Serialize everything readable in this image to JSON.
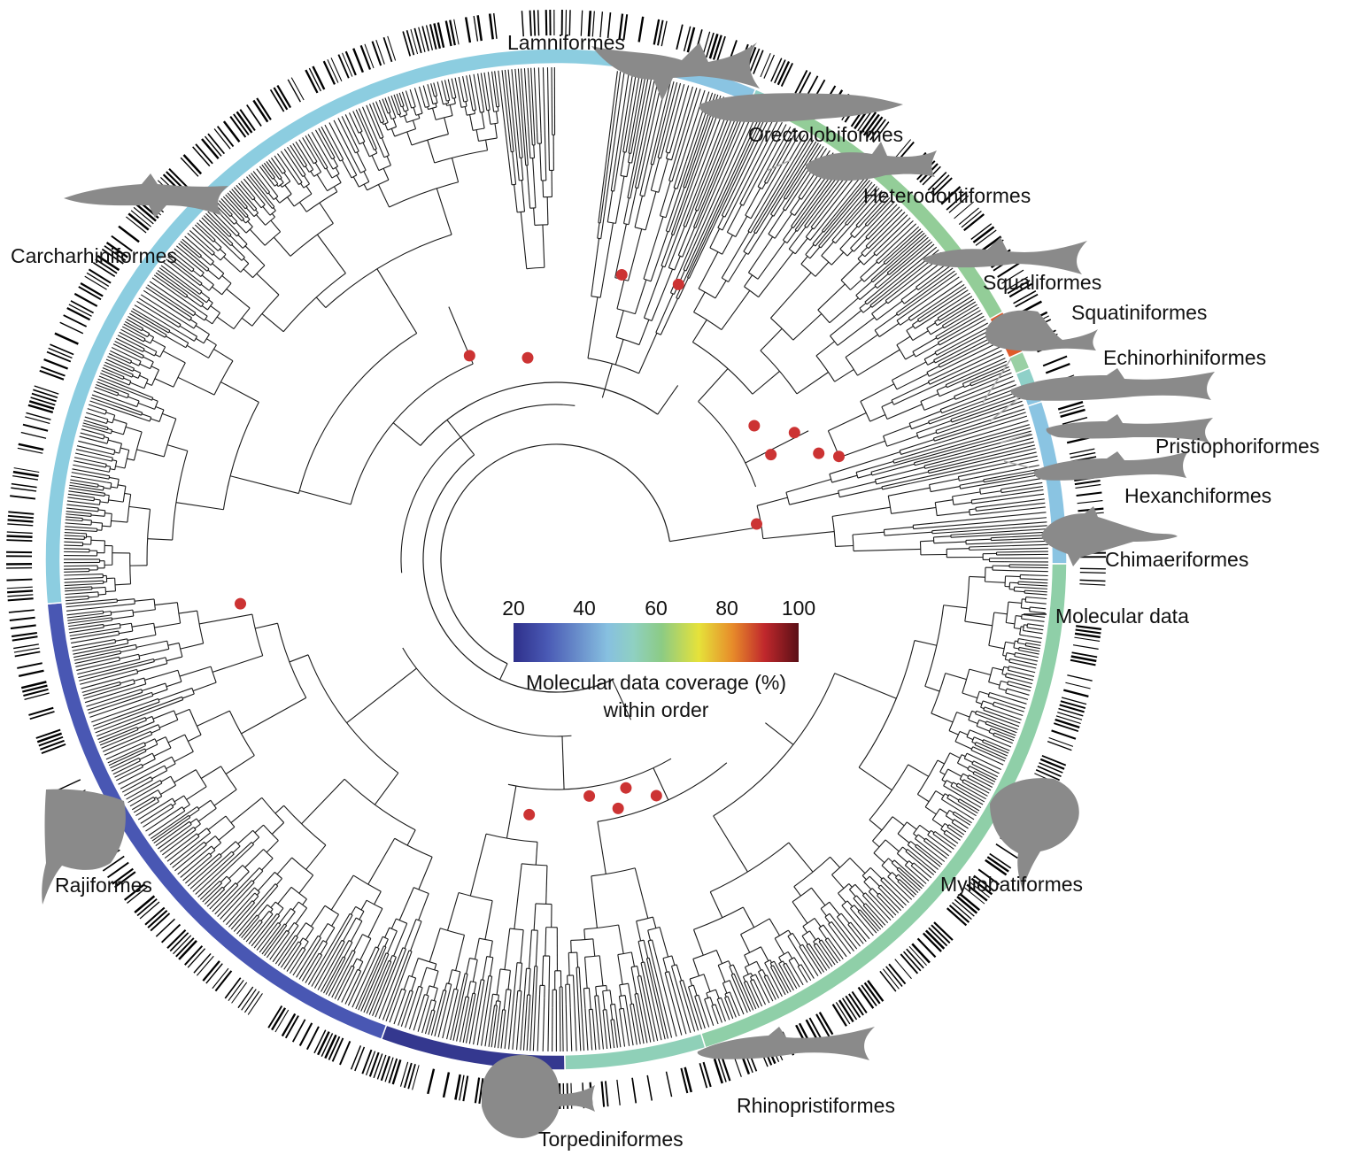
{
  "legend": {
    "ticks": [
      "20",
      "40",
      "60",
      "80",
      "100"
    ],
    "title_line1": "Molecular data coverage (%)",
    "title_line2": "within order",
    "gradient": [
      "#2e2f8a",
      "#4a5ab5",
      "#87c0e0",
      "#8fd0c2",
      "#8ccb84",
      "#e6e23a",
      "#e78a2a",
      "#c0282c",
      "#5a0f16"
    ]
  },
  "molecular_data_label": "Molecular data",
  "node_color": "#cc3333",
  "silhouette_color": "#8a8a8a",
  "orders": [
    {
      "name": "Lamniformes",
      "color": "#c8242a"
    },
    {
      "name": "Orectolobiformes",
      "color": "#8ac4e2"
    },
    {
      "name": "Heterodontiformes",
      "color": "#8fd0c6"
    },
    {
      "name": "Squaliformes",
      "color": "#93cd98"
    },
    {
      "name": "Squatiniformes",
      "color": "#e05a2a"
    },
    {
      "name": "Echinorhiniformes",
      "color": "#9ad0a4"
    },
    {
      "name": "Pristiophoriformes",
      "color": "#8fd0c8"
    },
    {
      "name": "Hexanchiformes",
      "color": "#8ac4e2"
    },
    {
      "name": "Chimaeriformes",
      "color": "#8ac4e2"
    },
    {
      "name": "Myliobatiformes",
      "color": "#8fcfa8"
    },
    {
      "name": "Rhinopristiformes",
      "color": "#8fd0b8"
    },
    {
      "name": "Torpediniformes",
      "color": "#34388f"
    },
    {
      "name": "Rajiformes",
      "color": "#4957b3"
    },
    {
      "name": "Carcharhiniformes",
      "color": "#8ccde0"
    }
  ]
}
